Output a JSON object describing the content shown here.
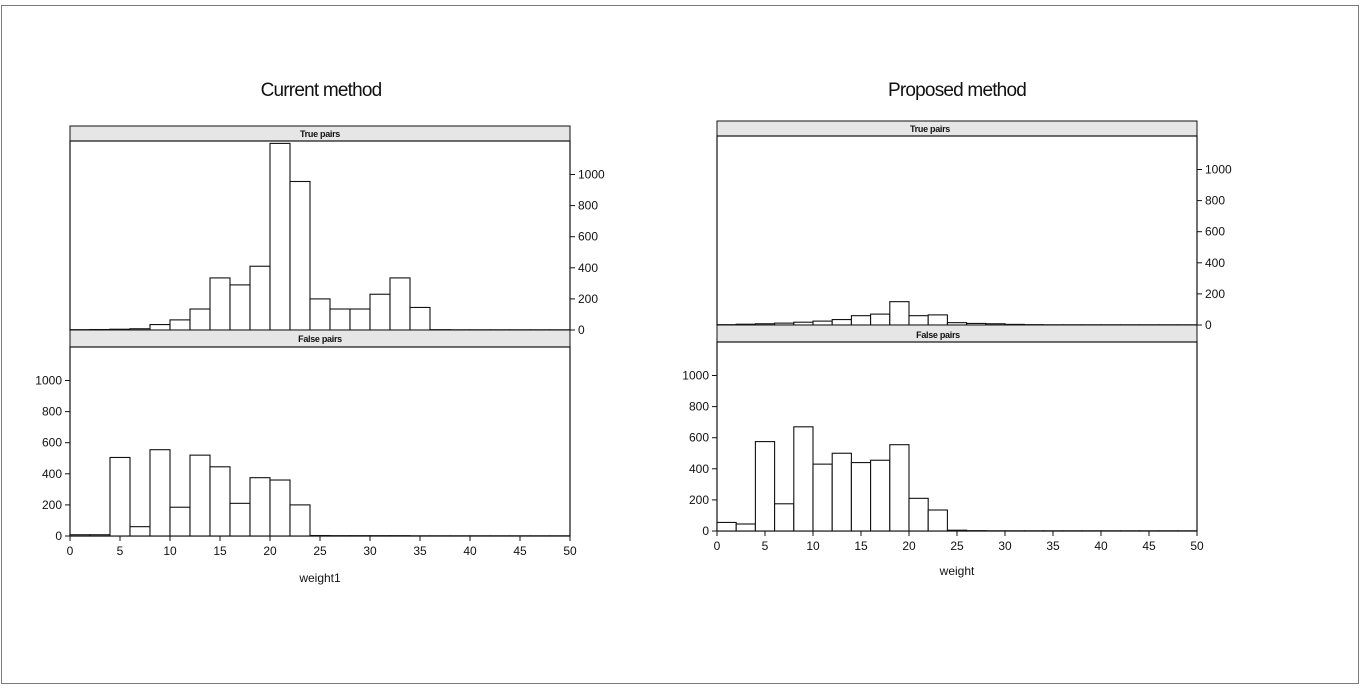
{
  "chart_data": [
    {
      "type": "bar",
      "title": "Current method",
      "xlabel": "weight1",
      "xlim": [
        0,
        50
      ],
      "ylim": [
        0,
        1150
      ],
      "xticks": [
        "0",
        "5",
        "10",
        "15",
        "20",
        "25",
        "30",
        "35",
        "40",
        "45",
        "50"
      ],
      "yticks": [
        "0",
        "200",
        "400",
        "600",
        "800",
        "1000"
      ],
      "bin_width": 2,
      "panels": [
        {
          "strip": "True pairs",
          "bin_starts": [
            0,
            2,
            4,
            6,
            8,
            10,
            12,
            14,
            16,
            18,
            20,
            22,
            24,
            26,
            28,
            30,
            32,
            34,
            36,
            38,
            40,
            42,
            44,
            46,
            48
          ],
          "values": [
            2,
            3,
            5,
            8,
            35,
            65,
            135,
            335,
            290,
            410,
            1200,
            955,
            200,
            135,
            135,
            230,
            335,
            145,
            2,
            1,
            1,
            1,
            1,
            1,
            1
          ]
        },
        {
          "strip": "False pairs",
          "bin_starts": [
            0,
            2,
            4,
            6,
            8,
            10,
            12,
            14,
            16,
            18,
            20,
            22,
            24,
            26,
            28,
            30,
            32,
            34,
            36,
            38,
            40,
            42,
            44,
            46,
            48
          ],
          "values": [
            8,
            8,
            505,
            60,
            555,
            185,
            520,
            445,
            210,
            375,
            360,
            200,
            3,
            2,
            2,
            2,
            2,
            1,
            1,
            1,
            1,
            1,
            1,
            1,
            1
          ]
        }
      ]
    },
    {
      "type": "bar",
      "title": "Proposed method",
      "xlabel": "weight",
      "xlim": [
        0,
        50
      ],
      "ylim": [
        0,
        1150
      ],
      "xticks": [
        "0",
        "5",
        "10",
        "15",
        "20",
        "25",
        "30",
        "35",
        "40",
        "45",
        "50"
      ],
      "yticks": [
        "0",
        "200",
        "400",
        "600",
        "800",
        "1000"
      ],
      "bin_width": 2,
      "panels": [
        {
          "strip": "True pairs",
          "bin_starts": [
            0,
            2,
            4,
            6,
            8,
            10,
            12,
            14,
            16,
            18,
            20,
            22,
            24,
            26,
            28,
            30,
            32,
            34,
            36,
            38,
            40,
            42,
            44,
            46,
            48
          ],
          "values": [
            2,
            5,
            8,
            12,
            18,
            25,
            35,
            60,
            70,
            150,
            60,
            65,
            15,
            10,
            8,
            4,
            2,
            1,
            1,
            1,
            1,
            1,
            1,
            1,
            1
          ]
        },
        {
          "strip": "False pairs",
          "bin_starts": [
            0,
            2,
            4,
            6,
            8,
            10,
            12,
            14,
            16,
            18,
            20,
            22,
            24,
            26,
            28,
            30,
            32,
            34,
            36,
            38,
            40,
            42,
            44,
            46,
            48
          ],
          "values": [
            55,
            45,
            575,
            175,
            670,
            430,
            500,
            440,
            455,
            555,
            210,
            135,
            5,
            2,
            1,
            1,
            1,
            1,
            1,
            1,
            1,
            1,
            1,
            1,
            1
          ]
        }
      ]
    }
  ]
}
